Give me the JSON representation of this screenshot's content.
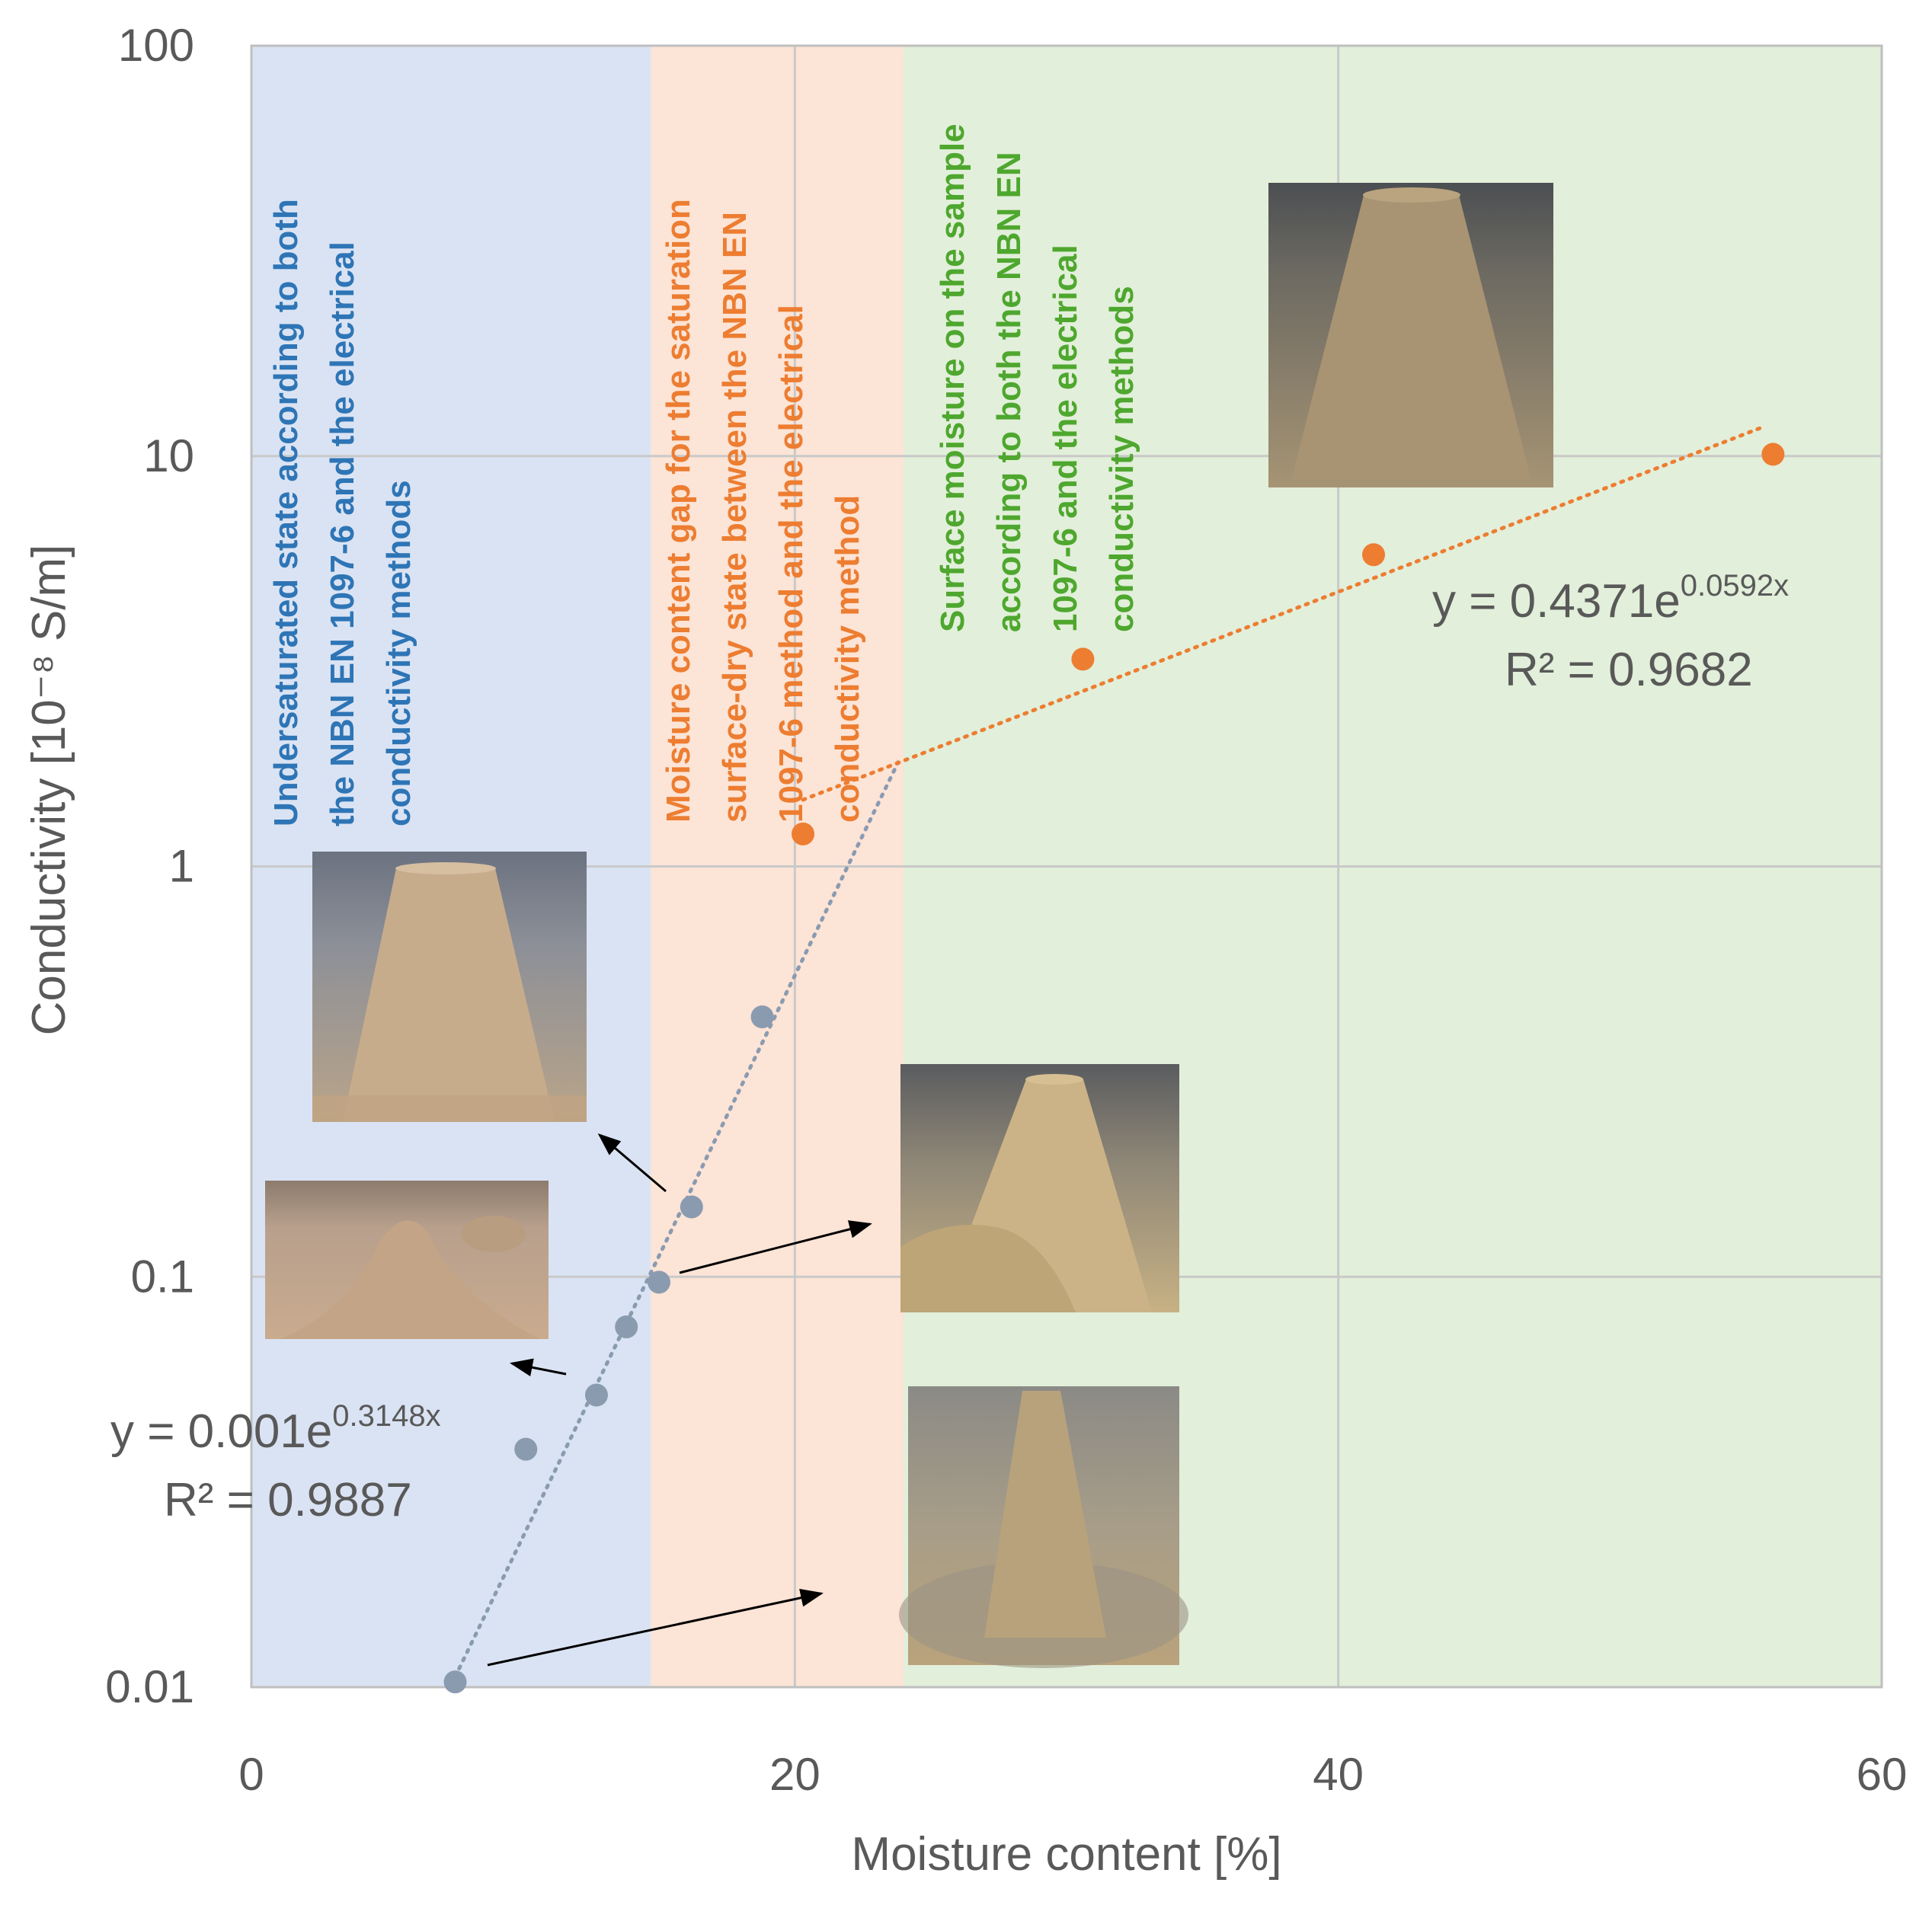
{
  "chart_data": {
    "type": "scatter",
    "title": "",
    "xlabel": "Moisture content [%]",
    "ylabel": "Conductivity [10⁻⁸ S/m]",
    "xlim": [
      0,
      60
    ],
    "ylim": [
      0.01,
      100
    ],
    "y_scale": "log",
    "x_ticks": [
      "0",
      "20",
      "40",
      "60"
    ],
    "y_ticks": [
      "0.01",
      "0.1",
      "1",
      "10",
      "100"
    ],
    "grid": true,
    "series": [
      {
        "color": "#8a9bb0",
        "points": [
          {
            "x": 7.5,
            "y": 0.0103
          },
          {
            "x": 10.1,
            "y": 0.038
          },
          {
            "x": 12.7,
            "y": 0.0515
          },
          {
            "x": 13.8,
            "y": 0.0755
          },
          {
            "x": 15.0,
            "y": 0.097
          },
          {
            "x": 16.2,
            "y": 0.148
          },
          {
            "x": 18.8,
            "y": 0.43
          }
        ],
        "trendline": {
          "type": "exponential",
          "a": 0.001,
          "b": 0.3148,
          "x_range": [
            7.5,
            23.8
          ]
        },
        "equation": {
          "base": "y = 0.001e",
          "exponent": "0.3148x",
          "r2": "R² = 0.9887"
        }
      },
      {
        "color": "#ed7d31",
        "points": [
          {
            "x": 20.3,
            "y": 1.2
          },
          {
            "x": 30.6,
            "y": 3.2
          },
          {
            "x": 41.3,
            "y": 5.75
          },
          {
            "x": 56.0,
            "y": 10.1
          }
        ],
        "trendline": {
          "type": "exponential",
          "a": 0.4371,
          "b": 0.0592,
          "x_range": [
            20.3,
            55.6
          ]
        },
        "equation": {
          "base": "y = 0.4371e",
          "exponent": "0.0592x",
          "r2": "R² = 0.9682"
        }
      }
    ],
    "regions": [
      {
        "x_range": [
          0,
          14.7
        ],
        "fill": "#dae3f3",
        "text_color": "#2e75b6",
        "lines": [
          "Undersaturated state according to both",
          "the NBN EN 1097-6  and the electrical",
          "conductivity methods"
        ]
      },
      {
        "x_range": [
          14.7,
          24
        ],
        "fill": "#fce4d6",
        "text_color": "#ed7d31",
        "lines": [
          "Moisture  content gap for the saturation",
          "surface-dry state between the NBN EN",
          "1097-6 method and the  electrical",
          "conductivity method"
        ]
      },
      {
        "x_range": [
          24,
          60
        ],
        "fill": "#e2efda",
        "text_color": "#4ea72e",
        "lines": [
          "Surface moisture on the sample",
          "according to both the NBN EN",
          "1097-6 and the electrical",
          "conductivity methods"
        ]
      }
    ],
    "photos": [
      {
        "subject": "tall sand cone, mostly intact",
        "tone": "#c4a889"
      },
      {
        "subject": "collapsed sand mound",
        "tone": "#c9a888"
      },
      {
        "subject": "sand cone with slumped base",
        "tone": "#c8b07c"
      },
      {
        "subject": "narrow sand cone in steel pan",
        "tone": "#b7a684"
      },
      {
        "subject": "wet sand cone, rough surface",
        "tone": "#a69474"
      }
    ]
  }
}
